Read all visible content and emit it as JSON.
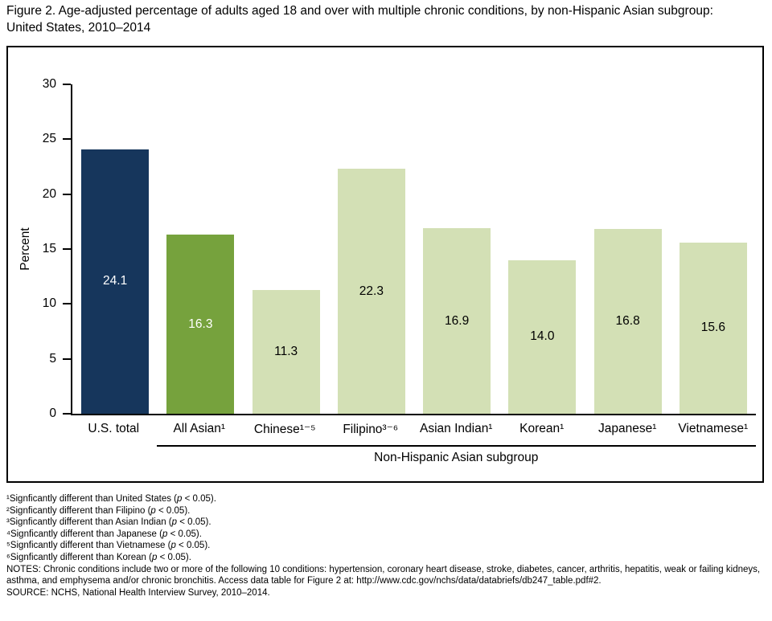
{
  "title": "Figure 2. Age-adjusted percentage of adults aged 18 and over with multiple chronic conditions, by non-Hispanic Asian subgroup: United States, 2010–2014",
  "chart_data": {
    "type": "bar",
    "title": "Figure 2. Age-adjusted percentage of adults aged 18 and over with multiple chronic conditions, by non-Hispanic Asian subgroup: United States, 2010–2014",
    "categories": [
      "U.S. total",
      "All Asian¹",
      "Chinese¹⁻⁵",
      "Filipino³⁻⁶",
      "Asian Indian¹",
      "Korean¹",
      "Japanese¹",
      "Vietnamese¹"
    ],
    "values": [
      24.1,
      16.3,
      11.3,
      22.3,
      16.9,
      14.0,
      16.8,
      15.6
    ],
    "value_labels": [
      "24.1",
      "16.3",
      "11.3",
      "22.3",
      "16.9",
      "14.0",
      "16.8",
      "15.6"
    ],
    "bar_colors": [
      "#16365c",
      "#76a23d",
      "#d3e0b5",
      "#d3e0b5",
      "#d3e0b5",
      "#d3e0b5",
      "#d3e0b5",
      "#d3e0b5"
    ],
    "value_label_colors": [
      "#ffffff",
      "#ffffff",
      "#000000",
      "#000000",
      "#000000",
      "#000000",
      "#000000",
      "#000000"
    ],
    "xlabel": "",
    "ylabel": "Percent",
    "ylim": [
      0,
      30
    ],
    "yticks": [
      0,
      5,
      10,
      15,
      20,
      25,
      30
    ],
    "grid": false,
    "legend": "none",
    "group_axis_label": "Non-Hispanic Asian subgroup",
    "group_span_categories": [
      "All Asian¹",
      "Vietnamese¹"
    ]
  },
  "footnotes": [
    "¹Signficantly different than United States (p < 0.05).",
    "²Signficantly different than Filipino (p < 0.05).",
    "³Signficantly different than Asian Indian (p < 0.05).",
    "⁴Signficantly different than Japanese (p < 0.05).",
    "⁵Signficantly different than Vietnamese (p < 0.05).",
    "⁶Signficantly different than Korean (p < 0.05)."
  ],
  "notes": "NOTES: Chronic conditions include two or more of the following 10 conditions: hypertension, coronary heart disease, stroke, diabetes, cancer, arthritis, hepatitis, weak or failing kidneys, asthma, and emphysema and/or chronic bronchitis. Access data table for Figure 2 at: http://www.cdc.gov/nchs/data/databriefs/db247_table.pdf#2.",
  "source": "SOURCE: NCHS, National Health Interview Survey, 2010–2014."
}
